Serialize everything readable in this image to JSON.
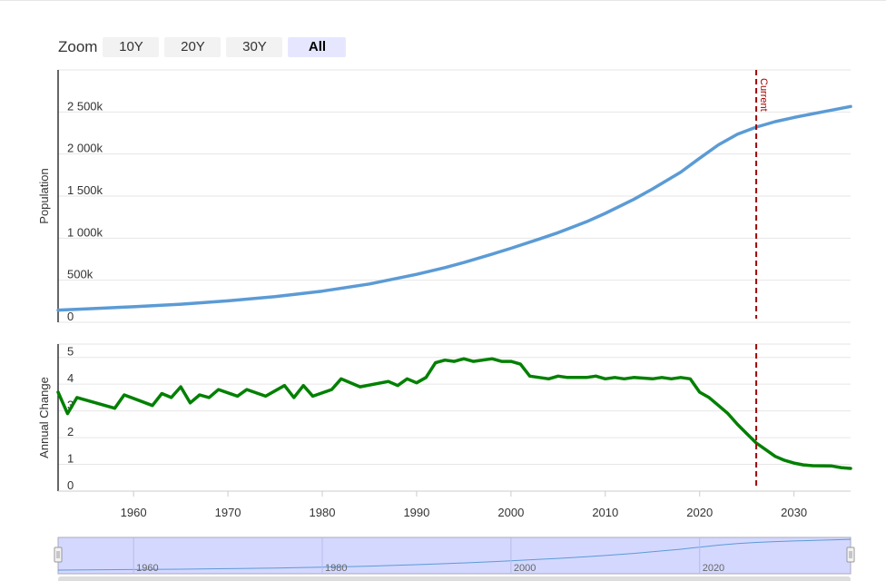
{
  "zoom": {
    "label": "Zoom",
    "buttons": [
      {
        "label": "10Y",
        "active": false
      },
      {
        "label": "20Y",
        "active": false
      },
      {
        "label": "30Y",
        "active": false
      },
      {
        "label": "All",
        "active": true
      }
    ]
  },
  "navigator": {
    "labels": [
      "1960",
      "1980",
      "2000",
      "2020"
    ]
  },
  "colors": {
    "population": "#5b9bd5",
    "annual_change": "#008000",
    "current_line": "#a00000",
    "grid": "#e6e6e6",
    "navigator_fill": "#ccd1ff"
  },
  "chart_data": [
    {
      "type": "line",
      "ylabel": "Population",
      "xlim": [
        1952,
        2036
      ],
      "ylim": [
        0,
        3000
      ],
      "y_ticks": [
        {
          "value": 0,
          "label": "0"
        },
        {
          "value": 500,
          "label": "500k"
        },
        {
          "value": 1000,
          "label": "1 000k"
        },
        {
          "value": 1500,
          "label": "1 500k"
        },
        {
          "value": 2000,
          "label": "2 000k"
        },
        {
          "value": 2500,
          "label": "2 500k"
        }
      ],
      "plot_line": {
        "x": 2026,
        "label": "Current"
      },
      "grid": true,
      "series": [
        {
          "x": [
            1952,
            1955,
            1960,
            1965,
            1970,
            1975,
            1980,
            1985,
            1990,
            1993,
            1995,
            1998,
            2000,
            2003,
            2005,
            2008,
            2010,
            2013,
            2015,
            2018,
            2020,
            2022,
            2024,
            2026,
            2028,
            2030,
            2033,
            2036
          ],
          "values": [
            145,
            160,
            185,
            215,
            255,
            305,
            370,
            455,
            570,
            650,
            710,
            810,
            880,
            990,
            1065,
            1195,
            1295,
            1460,
            1585,
            1785,
            1950,
            2110,
            2235,
            2320,
            2385,
            2435,
            2500,
            2565
          ]
        }
      ]
    },
    {
      "type": "line",
      "ylabel": "Annual Change",
      "xlabel": "",
      "xlim": [
        1952,
        2036
      ],
      "ylim": [
        0,
        5.5
      ],
      "y_ticks": [
        {
          "value": 0,
          "label": "0"
        },
        {
          "value": 1,
          "label": "1"
        },
        {
          "value": 2,
          "label": "2"
        },
        {
          "value": 3,
          "label": "3"
        },
        {
          "value": 4,
          "label": "4"
        },
        {
          "value": 5,
          "label": "5"
        }
      ],
      "x_ticks": [
        "1960",
        "1970",
        "1980",
        "1990",
        "2000",
        "2010",
        "2020",
        "2030"
      ],
      "plot_line": {
        "x": 2026
      },
      "grid": true,
      "series": [
        {
          "x": [
            1952,
            1953,
            1954,
            1958,
            1959,
            1962,
            1963,
            1964,
            1965,
            1966,
            1967,
            1968,
            1969,
            1971,
            1972,
            1974,
            1976,
            1977,
            1978,
            1979,
            1981,
            1982,
            1984,
            1987,
            1988,
            1989,
            1990,
            1991,
            1992,
            1993,
            1994,
            1995,
            1996,
            1998,
            1999,
            2000,
            2001,
            2002,
            2004,
            2005,
            2006,
            2008,
            2009,
            2010,
            2011,
            2012,
            2013,
            2015,
            2016,
            2017,
            2018,
            2019,
            2020,
            2021,
            2022,
            2023,
            2024,
            2025,
            2026,
            2027,
            2028,
            2029,
            2030,
            2031,
            2032,
            2034,
            2035,
            2036
          ],
          "values": [
            3.7,
            2.9,
            3.5,
            3.1,
            3.6,
            3.2,
            3.65,
            3.5,
            3.9,
            3.3,
            3.6,
            3.5,
            3.8,
            3.55,
            3.8,
            3.55,
            3.95,
            3.5,
            3.95,
            3.55,
            3.8,
            4.2,
            3.9,
            4.1,
            3.95,
            4.2,
            4.05,
            4.25,
            4.8,
            4.9,
            4.85,
            4.95,
            4.85,
            4.95,
            4.85,
            4.85,
            4.75,
            4.3,
            4.2,
            4.3,
            4.25,
            4.25,
            4.3,
            4.2,
            4.25,
            4.2,
            4.25,
            4.2,
            4.25,
            4.2,
            4.25,
            4.2,
            3.7,
            3.5,
            3.2,
            2.9,
            2.5,
            2.15,
            1.8,
            1.55,
            1.3,
            1.15,
            1.05,
            0.98,
            0.95,
            0.94,
            0.88,
            0.85
          ]
        }
      ]
    }
  ]
}
